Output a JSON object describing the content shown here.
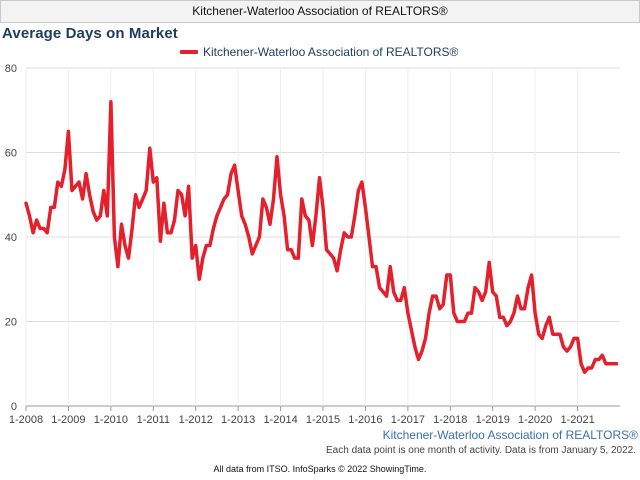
{
  "header": {
    "title": "Kitchener-Waterloo Association of REALTORS®"
  },
  "chart_data": {
    "type": "line",
    "title": "Average Days on Market",
    "ylim": [
      0,
      80
    ],
    "yticks": [
      0,
      20,
      40,
      60,
      80
    ],
    "xticks": [
      "1-2008",
      "1-2009",
      "1-2010",
      "1-2011",
      "1-2012",
      "1-2013",
      "1-2014",
      "1-2015",
      "1-2016",
      "1-2017",
      "1-2018",
      "1-2019",
      "1-2020",
      "1-2021"
    ],
    "x_start": "2008-01",
    "x_end": "2021-12",
    "grid": true,
    "legend_position": "top-center",
    "series": [
      {
        "name": "Kitchener-Waterloo Association of REALTORS®",
        "color": "#e3202b",
        "values": [
          48,
          45,
          41,
          44,
          42,
          42,
          41,
          47,
          47,
          53,
          52,
          56,
          65,
          51,
          52,
          53,
          49,
          55,
          50,
          46,
          44,
          45,
          51,
          45,
          72,
          40,
          33,
          43,
          38,
          35,
          42,
          50,
          47,
          49,
          51,
          61,
          53,
          54,
          39,
          48,
          41,
          41,
          44,
          51,
          50,
          45,
          52,
          35,
          38,
          30,
          35,
          38,
          38,
          42,
          45,
          47,
          49,
          50,
          55,
          57,
          51,
          45,
          43,
          40,
          36,
          38,
          40,
          49,
          47,
          43,
          49,
          59,
          50,
          45,
          37,
          37,
          35,
          35,
          49,
          45,
          44,
          38,
          45,
          54,
          47,
          37,
          36,
          35,
          32,
          37,
          41,
          40,
          40,
          45,
          51,
          53,
          47,
          40,
          33,
          33,
          28,
          27,
          26,
          33,
          27,
          25,
          25,
          28,
          22,
          18,
          14,
          11,
          13,
          16,
          22,
          26,
          26,
          23,
          24,
          31,
          31,
          22,
          20,
          20,
          20,
          22,
          22,
          28,
          27,
          25,
          27,
          34,
          27,
          26,
          21,
          21,
          19,
          20,
          22,
          26,
          23,
          23,
          28,
          31,
          22,
          17,
          16,
          19,
          21,
          17,
          17,
          17,
          14,
          13,
          14,
          16,
          16,
          10,
          8,
          9,
          9,
          11,
          11,
          12,
          10,
          10,
          10,
          10
        ]
      }
    ]
  },
  "source_label": "Kitchener-Waterloo Association of REALTORS®",
  "note": "Each data point is one month of activity. Data is from January 5, 2022.",
  "footer": "All data from ITSO. InfoSparks © 2022 ShowingTime."
}
